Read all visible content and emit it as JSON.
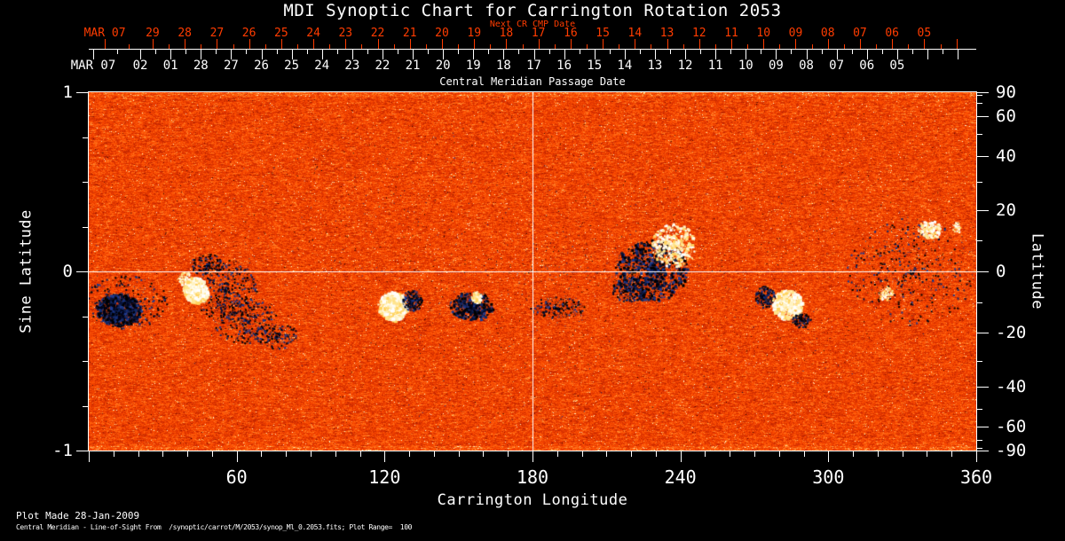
{
  "title": "MDI Synoptic Chart for Carrington Rotation 2053",
  "colors": {
    "background": "#000000",
    "foreground": "#ffffff",
    "red_axis": "#ff3c00"
  },
  "footer": {
    "line1": "Plot Made 28-Jan-2009",
    "line2": "Central Meridian - Line-of-Sight From  /synoptic/carrot/M/2053/synop_Ml_0.2053.fits; Plot Range=  100"
  },
  "chart_data": {
    "type": "heatmap",
    "title": "MDI Synoptic Chart for Carrington Rotation 2053",
    "xlabel": "Carrington Longitude",
    "ylabel_left": "Sine Latitude",
    "ylabel_right": "Latitude",
    "xlim": [
      0,
      360
    ],
    "ylim_sine": [
      -1,
      1
    ],
    "x_major_ticks": [
      60,
      120,
      180,
      240,
      300,
      360
    ],
    "x_minor_step": 10,
    "y_left_major_ticks": [
      1,
      0,
      -1
    ],
    "y_left_minor_ticks": [
      0.75,
      0.5,
      0.25,
      -0.25,
      -0.5,
      -0.75
    ],
    "y_right_major_ticks": [
      90,
      60,
      40,
      20,
      0,
      -20,
      -40,
      -60,
      -90
    ],
    "y_right_minor_ticks": [
      80,
      70,
      50,
      30,
      10,
      -10,
      -30,
      -50,
      -70,
      -80
    ],
    "top_axis": {
      "label": "Next CR CMP Date",
      "first_label": "MAR 07",
      "first_lon": 6.5,
      "start_lon": 25.9,
      "end_lon": 338.9,
      "day_labels": [
        "29",
        "28",
        "27",
        "26",
        "25",
        "24",
        "23",
        "22",
        "21",
        "20",
        "19",
        "18",
        "17",
        "16",
        "15",
        "14",
        "13",
        "12",
        "11",
        "10",
        "09",
        "08",
        "07",
        "06",
        "05"
      ]
    },
    "cmp_axis": {
      "label": "Central Meridian Passage Date",
      "first_label": "MAR 07",
      "first_lon": 1.8,
      "start_lon": 20.9,
      "end_lon": 327.9,
      "day_labels": [
        "02",
        "01",
        "28",
        "27",
        "26",
        "25",
        "24",
        "23",
        "22",
        "21",
        "20",
        "19",
        "18",
        "17",
        "16",
        "15",
        "14",
        "13",
        "12",
        "11",
        "10",
        "09",
        "08",
        "07",
        "06",
        "05"
      ]
    },
    "crosshair": {
      "lon": 180,
      "sine_lat": 0
    },
    "plot_range_gauss": 100,
    "noise_seed": 20530,
    "palette": [
      [
        0.0,
        "#2e0400"
      ],
      [
        0.12,
        "#7e1200"
      ],
      [
        0.3,
        "#c22600"
      ],
      [
        0.5,
        "#e93a00"
      ],
      [
        0.62,
        "#fb4c00"
      ],
      [
        0.75,
        "#ff6612"
      ],
      [
        0.86,
        "#ff8f33"
      ],
      [
        0.94,
        "#ffc36d"
      ],
      [
        1.0,
        "#fff3c8"
      ]
    ],
    "neg_colors": [
      "#000005",
      "#01031a",
      "#071238",
      "#122865",
      "#000000",
      "#1d3a8f"
    ],
    "pos_colors": [
      "#ffffff",
      "#fffdf0",
      "#fff3c4",
      "#ffe48e",
      "#ffd35e"
    ],
    "features": [
      {
        "lon": 180,
        "slat": 0,
        "rlon": 180,
        "rslat": 0.85,
        "polarity": "neg",
        "dots": 700,
        "dot": 1
      },
      {
        "lon": 180,
        "slat": 0,
        "rlon": 180,
        "rslat": 0.85,
        "polarity": "pos",
        "dots": 500,
        "dot": 1
      },
      {
        "lon": 15,
        "slat": -0.17,
        "rlon": 17,
        "rslat": 0.15,
        "polarity": "neg",
        "dots": 300,
        "dot": 2
      },
      {
        "lon": 12,
        "slat": -0.21,
        "rlon": 9,
        "rslat": 0.09,
        "polarity": "neg",
        "dots": 900,
        "dot": 3
      },
      {
        "lon": 48,
        "slat": 0.04,
        "rlon": 7,
        "rslat": 0.06,
        "polarity": "neg",
        "dots": 140,
        "dot": 2
      },
      {
        "lon": 55,
        "slat": -0.1,
        "rlon": 13,
        "rslat": 0.17,
        "polarity": "neg",
        "dots": 420,
        "dot": 2
      },
      {
        "lon": 63,
        "slat": -0.27,
        "rlon": 13,
        "rslat": 0.13,
        "polarity": "neg",
        "dots": 320,
        "dot": 2
      },
      {
        "lon": 76,
        "slat": -0.36,
        "rlon": 9,
        "rslat": 0.07,
        "polarity": "neg",
        "dots": 160,
        "dot": 2
      },
      {
        "lon": 39,
        "slat": -0.04,
        "rlon": 3,
        "rslat": 0.04,
        "polarity": "pos",
        "dots": 120,
        "dot": 2
      },
      {
        "lon": 43,
        "slat": -0.1,
        "rlon": 5,
        "rslat": 0.07,
        "polarity": "pos",
        "dots": 650,
        "dot": 4
      },
      {
        "lon": 123,
        "slat": -0.19,
        "rlon": 6,
        "rslat": 0.08,
        "polarity": "pos",
        "dots": 600,
        "dot": 4
      },
      {
        "lon": 131,
        "slat": -0.16,
        "rlon": 4,
        "rslat": 0.06,
        "polarity": "neg",
        "dots": 260,
        "dot": 2
      },
      {
        "lon": 155,
        "slat": -0.19,
        "rlon": 9,
        "rslat": 0.08,
        "polarity": "neg",
        "dots": 420,
        "dot": 3
      },
      {
        "lon": 157,
        "slat": -0.14,
        "rlon": 2,
        "rslat": 0.03,
        "polarity": "pos",
        "dots": 90,
        "dot": 3
      },
      {
        "lon": 190,
        "slat": -0.2,
        "rlon": 11,
        "rslat": 0.06,
        "polarity": "neg",
        "dots": 200,
        "dot": 2
      },
      {
        "lon": 228,
        "slat": 0.01,
        "rlon": 15,
        "rslat": 0.17,
        "polarity": "neg",
        "dots": 850,
        "dot": 3
      },
      {
        "lon": 219,
        "slat": -0.1,
        "rlon": 7,
        "rslat": 0.07,
        "polarity": "neg",
        "dots": 250,
        "dot": 2
      },
      {
        "lon": 237,
        "slat": 0.15,
        "rlon": 9,
        "rslat": 0.12,
        "polarity": "pos",
        "dots": 420,
        "dot": 3
      },
      {
        "lon": 274,
        "slat": -0.14,
        "rlon": 4,
        "rslat": 0.06,
        "polarity": "neg",
        "dots": 220,
        "dot": 2
      },
      {
        "lon": 283,
        "slat": -0.18,
        "rlon": 6,
        "rslat": 0.08,
        "polarity": "pos",
        "dots": 520,
        "dot": 4
      },
      {
        "lon": 289,
        "slat": -0.27,
        "rlon": 4,
        "rslat": 0.04,
        "polarity": "neg",
        "dots": 120,
        "dot": 2
      },
      {
        "lon": 333,
        "slat": 0.0,
        "rlon": 26,
        "rslat": 0.3,
        "polarity": "neg",
        "dots": 420,
        "dot": 2
      },
      {
        "lon": 341,
        "slat": 0.24,
        "rlon": 5,
        "rslat": 0.05,
        "polarity": "pos",
        "dots": 170,
        "dot": 3
      },
      {
        "lon": 323,
        "slat": -0.12,
        "rlon": 3,
        "rslat": 0.04,
        "polarity": "pos",
        "dots": 90,
        "dot": 2
      },
      {
        "lon": 352,
        "slat": 0.25,
        "rlon": 2,
        "rslat": 0.03,
        "polarity": "pos",
        "dots": 60,
        "dot": 2
      }
    ]
  }
}
